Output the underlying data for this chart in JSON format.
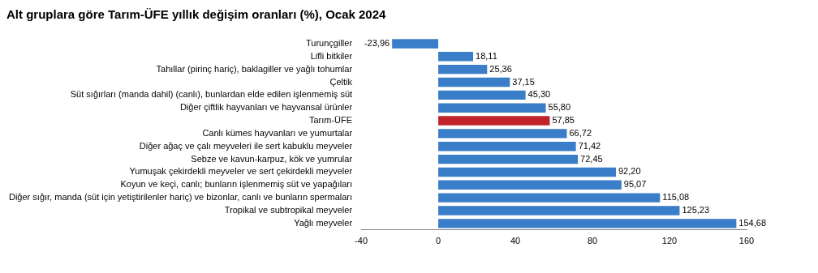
{
  "chart_data": {
    "type": "bar",
    "orientation": "horizontal",
    "title": "Alt gruplara göre Tarım-ÜFE yıllık değişim oranları (%), Ocak 2024",
    "categories": [
      "Turunçgiller",
      "Lifli bitkiler",
      "Tahıllar (pirinç hariç), baklagiller ve yağlı tohumlar",
      "Çeltik",
      "Süt sığırları (manda dahil) (canlı), bunlardan elde edilen işlenmemiş süt",
      "Diğer çiftlik hayvanları ve hayvansal ürünler",
      "Tarım-ÜFE",
      "Canlı kümes hayvanları ve yumurtalar",
      "Diğer ağaç ve çalı meyveleri ile sert kabuklu meyveler",
      "Sebze ve kavun-karpuz, kök ve yumrular",
      "Yumuşak çekirdekli meyveler ve sert çekirdekli meyveler",
      "Koyun ve keçi, canlı; bunların işlenmemiş süt ve yapağıları",
      "Diğer sığır, manda (süt için yetiştirilenler hariç) ve bizonlar, canlı ve bunların spermaları",
      "Tropikal ve subtropikal meyveler",
      "Yağlı meyveler"
    ],
    "values": [
      -23.96,
      18.11,
      25.36,
      37.15,
      45.3,
      55.8,
      57.85,
      66.72,
      71.42,
      72.45,
      92.2,
      95.07,
      115.08,
      125.23,
      154.68
    ],
    "value_labels": [
      "-23,96",
      "18,11",
      "25,36",
      "37,15",
      "45,30",
      "55,80",
      "57,85",
      "66,72",
      "71,42",
      "72,45",
      "92,20",
      "95,07",
      "115,08",
      "125,23",
      "154,68"
    ],
    "colors": [
      "#3a7dc9",
      "#3a7dc9",
      "#3a7dc9",
      "#3a7dc9",
      "#3a7dc9",
      "#3a7dc9",
      "#c0242a",
      "#3a7dc9",
      "#3a7dc9",
      "#3a7dc9",
      "#3a7dc9",
      "#3a7dc9",
      "#3a7dc9",
      "#3a7dc9",
      "#3a7dc9"
    ],
    "xlim": [
      -40,
      160
    ],
    "xticks": [
      -40,
      0,
      40,
      80,
      120,
      160
    ],
    "grid": false,
    "legend": false
  }
}
